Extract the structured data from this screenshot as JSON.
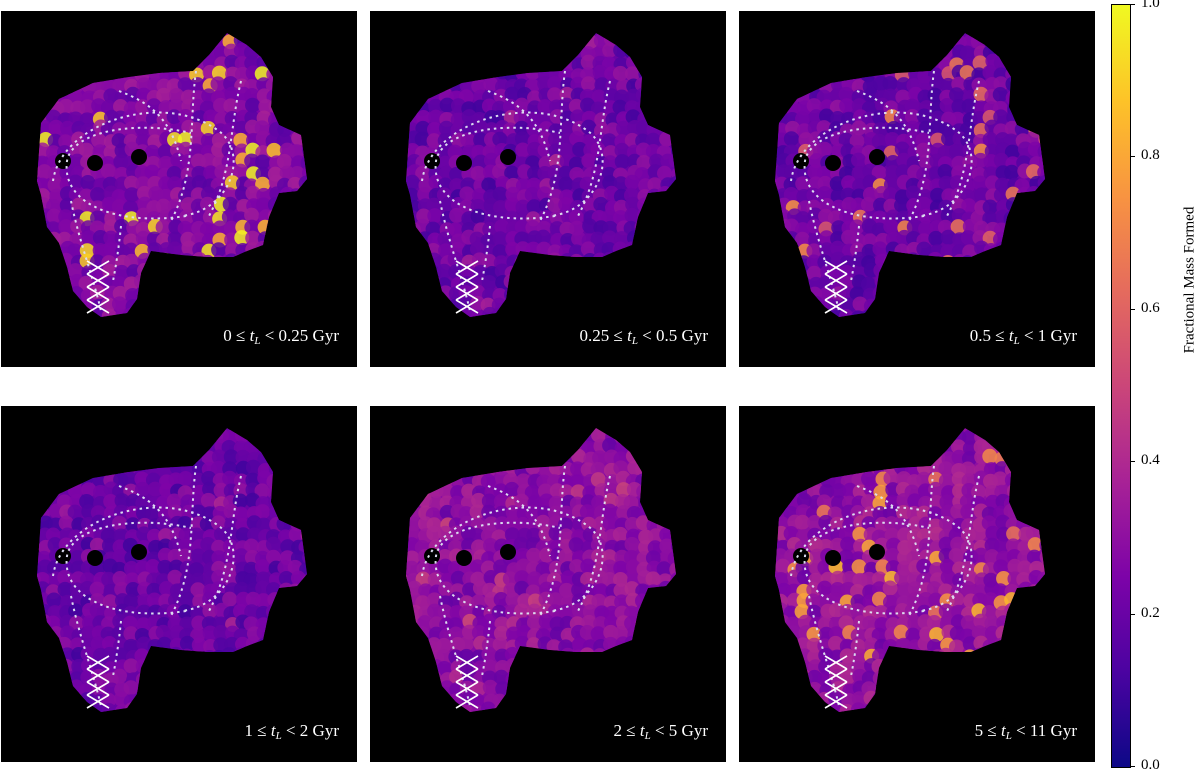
{
  "chart_data": {
    "type": "heatmap",
    "colormap": "plasma",
    "colorbar": {
      "label": "Fractional Mass Formed",
      "range": [
        0.0,
        1.0
      ],
      "ticks": [
        "0.0",
        "0.2",
        "0.4",
        "0.6",
        "0.8",
        "1.0"
      ]
    },
    "panels": [
      {
        "range": "0 ≤ t_L < 0.25 Gyr",
        "pre": "0 ≤ ",
        "post": " < 0.25 Gyr",
        "base_level": 0.25,
        "hotspot_level": 0.9
      },
      {
        "range": "0.25 ≤ t_L < 0.5 Gyr",
        "pre": "0.25 ≤ ",
        "post": " < 0.5 Gyr",
        "base_level": 0.2,
        "hotspot_level": 0.3
      },
      {
        "range": "0.5 ≤ t_L < 1 Gyr",
        "pre": "0.5 ≤ ",
        "post": " < 1 Gyr",
        "base_level": 0.2,
        "hotspot_level": 0.65
      },
      {
        "range": "1 ≤ t_L < 2 Gyr",
        "pre": "1 ≤ ",
        "post": " < 2 Gyr",
        "base_level": 0.2,
        "hotspot_level": 0.28
      },
      {
        "range": "2 ≤ t_L < 5 Gyr",
        "pre": "2 ≤ ",
        "post": " < 5 Gyr",
        "base_level": 0.28,
        "hotspot_level": 0.4
      },
      {
        "range": "5 ≤ t_L < 11 Gyr",
        "pre": "5 ≤ ",
        "post": " < 11 Gyr",
        "base_level": 0.3,
        "hotspot_level": 0.75
      }
    ],
    "overlays": [
      "white dotted spiral-arm contours",
      "white crosshatched masked region"
    ]
  }
}
